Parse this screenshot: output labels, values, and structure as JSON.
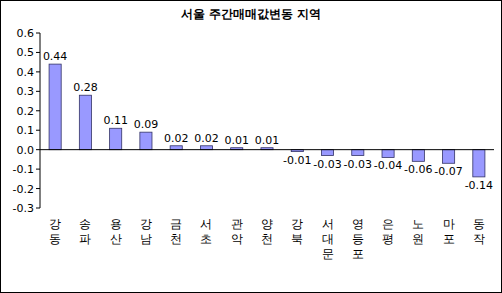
{
  "chart_data": {
    "type": "bar",
    "title": "서울 주간매매값변동 지역",
    "categories": [
      "강동",
      "송파",
      "용산",
      "강남",
      "금천",
      "서초",
      "관악",
      "양천",
      "강북",
      "서대문",
      "영등포",
      "은평",
      "노원",
      "마포",
      "동작"
    ],
    "values": [
      0.44,
      0.28,
      0.11,
      0.09,
      0.02,
      0.02,
      0.01,
      0.01,
      -0.01,
      -0.03,
      -0.03,
      -0.04,
      -0.06,
      -0.07,
      -0.14
    ],
    "color": "#9999ff",
    "ylim": [
      -0.3,
      0.6
    ],
    "yticks": [
      -0.3,
      -0.2,
      -0.1,
      {
        "value": 0,
        "label": "0.0"
      },
      0.1,
      0.2,
      0.3,
      0.4,
      0.5,
      0.6
    ],
    "grid": false,
    "data_labels": true
  }
}
